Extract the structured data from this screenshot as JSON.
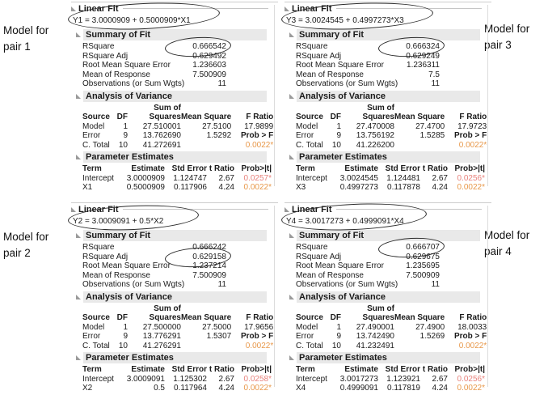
{
  "window": {
    "background": "#ffffff"
  },
  "colors": {
    "section_header_bar": "#e9e9e9",
    "significance_red": "#e8837d",
    "significance_orange": "#e8984a",
    "annotation_ellipse": "#2b2b2b"
  },
  "labels": [
    {
      "text": "Model for pair 1"
    },
    {
      "text": "Model for pair 2"
    },
    {
      "text": "Model for pair 3"
    },
    {
      "text": "Model for pair 4"
    }
  ],
  "panels": [
    {
      "pair": 1,
      "title": "Linear Fit",
      "equation": "Y1 = 3.0000909 + 0.5000909*X1",
      "summary_title": "Summary of Fit",
      "summary_rows": [
        [
          "RSquare",
          "0.666542"
        ],
        [
          "RSquare Adj",
          "0.629492"
        ],
        [
          "Root Mean Square Error",
          "1.236603"
        ],
        [
          "Mean of Response",
          "7.500909"
        ],
        [
          "Observations (or Sum Wgts)",
          "11"
        ]
      ],
      "anova_title": "Analysis of Variance",
      "anova_sum_of": "Sum of",
      "anova_header": [
        "Source",
        "DF",
        "Squares",
        "Mean Square",
        "F Ratio"
      ],
      "anova_rows": [
        [
          "Model",
          "1",
          "27.510001",
          "27.5100",
          "17.9899"
        ],
        [
          "Error",
          "9",
          "13.762690",
          "1.5292",
          "Prob > F"
        ],
        [
          "C. Total",
          "10",
          "41.272691",
          "",
          "0.0022*"
        ]
      ],
      "param_title": "Parameter Estimates",
      "param_header": [
        "Term",
        "Estimate",
        "Std Error",
        "t Ratio",
        "Prob>|t|"
      ],
      "param_rows": [
        [
          "Intercept",
          "3.0000909",
          "1.124747",
          "2.67",
          "0.0257*"
        ],
        [
          "X1",
          "0.5000909",
          "0.117906",
          "4.24",
          "0.0022*"
        ]
      ],
      "circled": [
        "equation",
        "RSquare"
      ]
    },
    {
      "pair": 2,
      "title": "Linear Fit",
      "equation": "Y2 = 3.0009091 + 0.5*X2",
      "summary_title": "Summary of Fit",
      "summary_rows": [
        [
          "RSquare",
          "0.666242"
        ],
        [
          "RSquare Adj",
          "0.629158"
        ],
        [
          "Root Mean Square Error",
          "1.237214"
        ],
        [
          "Mean of Response",
          "7.500909"
        ],
        [
          "Observations (or Sum Wgts)",
          "11"
        ]
      ],
      "anova_title": "Analysis of Variance",
      "anova_sum_of": "Sum of",
      "anova_header": [
        "Source",
        "DF",
        "Squares",
        "Mean Square",
        "F Ratio"
      ],
      "anova_rows": [
        [
          "Model",
          "1",
          "27.500000",
          "27.5000",
          "17.9656"
        ],
        [
          "Error",
          "9",
          "13.776291",
          "1.5307",
          "Prob > F"
        ],
        [
          "C. Total",
          "10",
          "41.276291",
          "",
          "0.0022*"
        ]
      ],
      "param_title": "Parameter Estimates",
      "param_header": [
        "Term",
        "Estimate",
        "Std Error",
        "t Ratio",
        "Prob>|t|"
      ],
      "param_rows": [
        [
          "Intercept",
          "3.0009091",
          "1.125302",
          "2.67",
          "0.0258*"
        ],
        [
          "X2",
          "0.5",
          "0.117964",
          "4.24",
          "0.0022*"
        ]
      ],
      "circled": [
        "equation",
        "RSquare Adj"
      ]
    },
    {
      "pair": 3,
      "title": "Linear Fit",
      "equation": "Y3 = 3.0024545 + 0.4997273*X3",
      "summary_title": "Summary of Fit",
      "summary_rows": [
        [
          "RSquare",
          "0.666324"
        ],
        [
          "RSquare Adj",
          "0.629249"
        ],
        [
          "Root Mean Square Error",
          "1.236311"
        ],
        [
          "Mean of Response",
          "7.5"
        ],
        [
          "Observations (or Sum Wgts)",
          "11"
        ]
      ],
      "anova_title": "Analysis of Variance",
      "anova_sum_of": "Sum of",
      "anova_header": [
        "Source",
        "DF",
        "Squares",
        "Mean Square",
        "F Ratio"
      ],
      "anova_rows": [
        [
          "Model",
          "1",
          "27.470008",
          "27.4700",
          "17.9723"
        ],
        [
          "Error",
          "9",
          "13.756192",
          "1.5285",
          "Prob > F"
        ],
        [
          "C. Total",
          "10",
          "41.226200",
          "",
          "0.0022*"
        ]
      ],
      "param_title": "Parameter Estimates",
      "param_header": [
        "Term",
        "Estimate",
        "Std Error",
        "t Ratio",
        "Prob>|t|"
      ],
      "param_rows": [
        [
          "Intercept",
          "3.0024545",
          "1.124481",
          "2.67",
          "0.0256*"
        ],
        [
          "X3",
          "0.4997273",
          "0.117878",
          "4.24",
          "0.0022*"
        ]
      ],
      "circled": [
        "equation",
        "RSquare"
      ]
    },
    {
      "pair": 4,
      "title": "Linear Fit",
      "equation": "Y4 = 3.0017273 + 0.4999091*X4",
      "summary_title": "Summary of Fit",
      "summary_rows": [
        [
          "RSquare",
          "0.666707"
        ],
        [
          "RSquare Adj",
          "0.629675"
        ],
        [
          "Root Mean Square Error",
          "1.235695"
        ],
        [
          "Mean of Response",
          "7.500909"
        ],
        [
          "Observations (or Sum Wgts)",
          "11"
        ]
      ],
      "anova_title": "Analysis of Variance",
      "anova_sum_of": "Sum of",
      "anova_header": [
        "Source",
        "DF",
        "Squares",
        "Mean Square",
        "F Ratio"
      ],
      "anova_rows": [
        [
          "Model",
          "1",
          "27.490001",
          "27.4900",
          "18.0033"
        ],
        [
          "Error",
          "9",
          "13.742490",
          "1.5269",
          "Prob > F"
        ],
        [
          "C. Total",
          "10",
          "41.232491",
          "",
          "0.0022*"
        ]
      ],
      "param_title": "Parameter Estimates",
      "param_header": [
        "Term",
        "Estimate",
        "Std Error",
        "t Ratio",
        "Prob>|t|"
      ],
      "param_rows": [
        [
          "Intercept",
          "3.0017273",
          "1.123921",
          "2.67",
          "0.0256*"
        ],
        [
          "X4",
          "0.4999091",
          "0.117819",
          "4.24",
          "0.0022*"
        ]
      ],
      "circled": [
        "equation",
        "RSquare"
      ]
    }
  ]
}
